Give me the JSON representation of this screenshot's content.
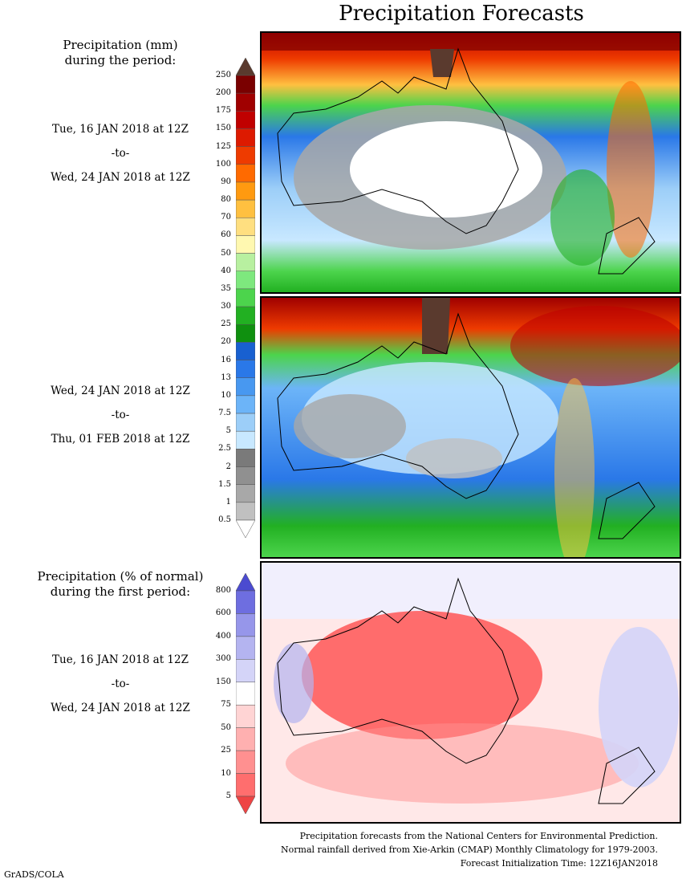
{
  "title": "Precipitation Forecasts",
  "panel1": {
    "label_line1": "Precipitation (mm)",
    "label_line2": "during the period:",
    "start": "Tue, 16 JAN 2018 at 12Z",
    "to": "-to-",
    "end": "Wed, 24 JAN 2018 at 12Z"
  },
  "panel2": {
    "start": "Wed, 24 JAN 2018 at 12Z",
    "to": "-to-",
    "end": "Thu, 01 FEB 2018 at 12Z"
  },
  "panel3": {
    "label_line1": "Precipitation (% of normal)",
    "label_line2": "during the first period:",
    "start": "Tue, 16 JAN 2018 at 12Z",
    "to": "-to-",
    "end": "Wed, 24 JAN 2018 at 12Z"
  },
  "mm_scale": {
    "ticks": [
      "250",
      "200",
      "175",
      "150",
      "125",
      "100",
      "90",
      "80",
      "70",
      "60",
      "50",
      "40",
      "35",
      "30",
      "25",
      "20",
      "16",
      "13",
      "10",
      "7.5",
      "5",
      "2.5",
      "2",
      "1.5",
      "1",
      "0.5"
    ],
    "colors": [
      "#5a3a2e",
      "#7a0000",
      "#a00000",
      "#c00000",
      "#dd1a00",
      "#ee3b00",
      "#ff6a00",
      "#ff9a10",
      "#ffc040",
      "#ffdf80",
      "#fff8b0",
      "#b8f0a0",
      "#7ee87e",
      "#4cd44c",
      "#22b022",
      "#0f900f",
      "#1860d0",
      "#2a78e8",
      "#4898f0",
      "#6cb4f8",
      "#9ccef8",
      "#c8e8ff",
      "#7a7a7a",
      "#909090",
      "#a8a8a8",
      "#c0c0c0",
      "#ffffff"
    ]
  },
  "pct_scale": {
    "ticks": [
      "800",
      "600",
      "400",
      "300",
      "150",
      "75",
      "50",
      "25",
      "10",
      "5"
    ],
    "colors": [
      "#4b4bd0",
      "#6e6ee0",
      "#9696ea",
      "#b4b4f0",
      "#d4d4f8",
      "#ffffff",
      "#ffd4d4",
      "#ffb0b0",
      "#ff9090",
      "#ff6e6e",
      "#ee4444"
    ]
  },
  "footer": {
    "line1": "Precipitation forecasts from the National Centers for Environmental Prediction.",
    "line2": "Normal rainfall derived from Xie-Arkin (CMAP) Monthly Climatology for 1979-2003.",
    "line3": "Forecast Initialization Time: 12Z16JAN2018"
  },
  "credit": "GrADS/COLA"
}
